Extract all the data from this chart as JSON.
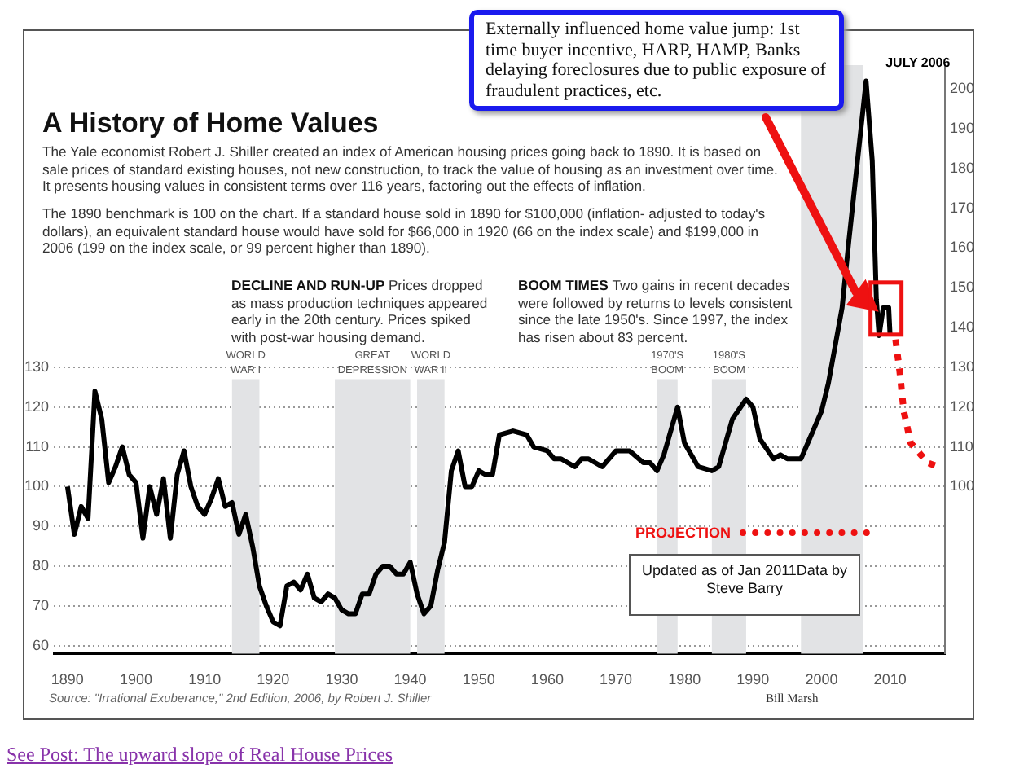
{
  "chart_data": {
    "type": "line",
    "title": "A History of Home Values",
    "subtitle": "The Yale economist Robert J. Shiller created an index of American housing prices going back to 1890. It is based on sale prices of standard existing houses, not new construction, to track the value of housing as an investment over time. It presents housing values in consistent terms over 116 years, factoring out the effects of inflation.",
    "annotations": [
      "The 1890 benchmark is 100 on the chart. If a standard house sold in 1890 for $100,000 (inflation- adjusted to today's dollars), an equivalent standard house would have sold for $66,000 in 1920 (66 on the index scale) and $199,000 in 2006 (199 on the index scale, or 99 percent higher than 1890).",
      "DECLINE AND RUN-UP",
      "Prices dropped as mass production techniques appeared early in the 20th century. Prices spiked with post-war housing demand.",
      "BOOM TIMES",
      "Two gains in recent decades were followed by returns to levels consistent since the late 1950's. Since 1997, the index has risen about 83 percent.",
      {
        "text": "JULY 2006",
        "x": 2006.5,
        "y": 202
      },
      "Externally influenced home value jump: 1st time buyer incentive, HARP, HAMP, Banks delaying foreclosures due to public exposure of fraudulent practices, etc.",
      "Updated as of Jan 2011Data by Steve Barry",
      "Source: \"Irrational Exuberance,\" 2nd Edition, 2006, by Robert J. Shiller",
      "Bill Marsh",
      "See Post: The upward slope of Real House Prices"
    ],
    "series": [
      {
        "color": "#000000",
        "line_style": "solid",
        "x": [
          1890,
          1891,
          1892,
          1893,
          1894,
          1895,
          1896,
          1897,
          1898,
          1899,
          1900,
          1901,
          1902,
          1903,
          1904,
          1905,
          1906,
          1907,
          1908,
          1909,
          1910,
          1911,
          1912,
          1913,
          1914,
          1915,
          1916,
          1917,
          1918,
          1919,
          1920,
          1921,
          1922,
          1923,
          1924,
          1925,
          1926,
          1927,
          1928,
          1929,
          1930,
          1931,
          1932,
          1933,
          1934,
          1935,
          1936,
          1937,
          1938,
          1939,
          1940,
          1941,
          1942,
          1943,
          1944,
          1945,
          1946,
          1947,
          1948,
          1949,
          1950,
          1951,
          1952,
          1953,
          1955,
          1957,
          1958,
          1960,
          1961,
          1962,
          1964,
          1965,
          1966,
          1968,
          1970,
          1972,
          1974,
          1975,
          1976,
          1977,
          1979,
          1980,
          1982,
          1984,
          1985,
          1987,
          1989,
          1990,
          1991,
          1993,
          1994,
          1995,
          1997,
          1998,
          2000,
          2001,
          2003,
          2004,
          2006.5,
          2007.4,
          2008,
          2008.4,
          2009,
          2009.8,
          2010
        ],
        "values": [
          100,
          88,
          95,
          92,
          124,
          117,
          101,
          105,
          110,
          103,
          101,
          87,
          100,
          93,
          102,
          87,
          103,
          109,
          100,
          95,
          93,
          97,
          102,
          95,
          96,
          88,
          93,
          85,
          75,
          70,
          66,
          65,
          75,
          76,
          74,
          78,
          72,
          71,
          73,
          72,
          69,
          68,
          68,
          73,
          73,
          78,
          80,
          80,
          78,
          78,
          81,
          73,
          68,
          70,
          79,
          86,
          104,
          109,
          100,
          100,
          104,
          103,
          103,
          113,
          114,
          113,
          110,
          109,
          107,
          107,
          105,
          107,
          107,
          105,
          109,
          109,
          106,
          106,
          104,
          108,
          120,
          111,
          105,
          104,
          105,
          117,
          122,
          120,
          112,
          107,
          108,
          107,
          107,
          111,
          119,
          126,
          145,
          162,
          202,
          182,
          147,
          138,
          145,
          145,
          138
        ]
      },
      {
        "name": "PROJECTION",
        "color": "#ee1111",
        "line_style": "dotted",
        "x": [
          2010.8,
          2011.4,
          2012,
          2013,
          2015.5,
          2017
        ],
        "values": [
          137,
          129,
          119,
          111,
          106,
          105
        ]
      }
    ],
    "bands": [
      {
        "axis": "x",
        "from": 1914,
        "to": 1918,
        "label": "WORLD WAR I",
        "color": "#e2e3e5"
      },
      {
        "axis": "x",
        "from": 1929,
        "to": 1940,
        "label": "GREAT DEPRESSION",
        "color": "#e2e3e5"
      },
      {
        "axis": "x",
        "from": 1941,
        "to": 1945,
        "label": "WORLD WAR II",
        "color": "#e2e3e5"
      },
      {
        "axis": "x",
        "from": 1976,
        "to": 1979,
        "label": "1970'S BOOM",
        "color": "#e2e3e5"
      },
      {
        "axis": "x",
        "from": 1984,
        "to": 1989,
        "label": "1980'S BOOM",
        "color": "#e2e3e5"
      },
      {
        "axis": "x",
        "from": 1997,
        "to": 2006,
        "label": null,
        "color": "#e2e3e5"
      }
    ],
    "xlim": [
      1888,
      2018
    ],
    "xticks": [
      1890,
      1900,
      1910,
      1920,
      1930,
      1940,
      1950,
      1960,
      1970,
      1980,
      1990,
      2000,
      2010
    ],
    "ylim": [
      58,
      206
    ],
    "yticks": [
      60,
      70,
      80,
      90,
      100,
      110,
      120,
      130
    ],
    "y2lim": [
      58,
      206
    ],
    "y2ticks": [
      100,
      110,
      120,
      130,
      140,
      150,
      160,
      170,
      180,
      190,
      200
    ],
    "grid": "y",
    "legend": "right",
    "marker": "none"
  }
}
